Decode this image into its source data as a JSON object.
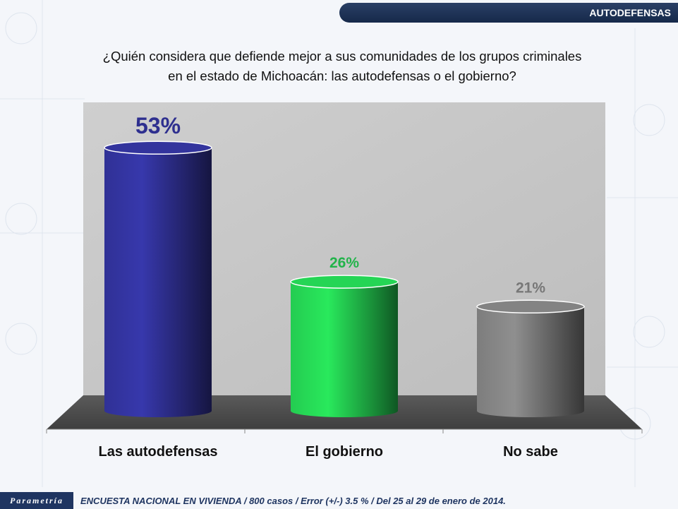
{
  "header": {
    "section": "AUTODEFENSAS"
  },
  "question": {
    "line1": "¿Quién considera que defiende mejor a sus comunidades de los grupos criminales",
    "line2": "en el estado de Michoacán: las autodefensas o el gobierno?"
  },
  "chart_data": {
    "type": "bar",
    "categories": [
      "Las autodefensas",
      "El gobierno",
      "No sabe"
    ],
    "values": [
      53,
      26,
      21
    ],
    "data_labels": [
      "53%",
      "26%",
      "21%"
    ],
    "colors": [
      "#2e2f8f",
      "#22c24d",
      "#777777"
    ],
    "label_colors": [
      "#2e2f8f",
      "#22b34a",
      "#777777"
    ],
    "ylim": [
      0,
      60
    ],
    "grid": false
  },
  "footer": {
    "brand": "Parametría",
    "note": "ENCUESTA NACIONAL EN VIVIENDA / 800 casos / Error (+/-) 3.5 % / Del 25 al 29 de enero de 2014."
  }
}
